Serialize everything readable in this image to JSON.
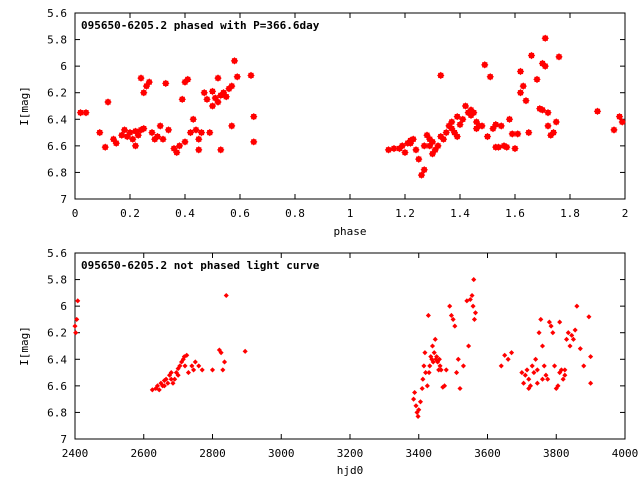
{
  "colors": {
    "points": "#ff0000",
    "frame": "#000000",
    "background": "#ffffff"
  },
  "chart_data": [
    {
      "type": "scatter",
      "title": "095650-6205.2 phased with P=366.6day",
      "xlabel": "phase",
      "ylabel": "I[mag]",
      "xlim": [
        0,
        2
      ],
      "ylim": [
        7,
        5.6
      ],
      "y_inverted": true,
      "grid": false,
      "legend": "none",
      "x_ticks": [
        "0",
        "0.2",
        "0.4",
        "0.6",
        "0.8",
        "1",
        "1.2",
        "1.4",
        "1.6",
        "1.8",
        "2"
      ],
      "y_ticks": [
        "5.6",
        "5.8",
        "6",
        "6.2",
        "6.4",
        "6.6",
        "6.8",
        "7"
      ],
      "x_tick_values": [
        0,
        0.2,
        0.4,
        0.6,
        0.8,
        1,
        1.2,
        1.4,
        1.6,
        1.8,
        2
      ],
      "y_tick_values": [
        5.6,
        5.8,
        6,
        6.2,
        6.4,
        6.6,
        6.8,
        7
      ],
      "points": [
        [
          0.02,
          6.35
        ],
        [
          0.04,
          6.35
        ],
        [
          0.09,
          6.5
        ],
        [
          0.11,
          6.61
        ],
        [
          0.12,
          6.27
        ],
        [
          0.14,
          6.55
        ],
        [
          0.15,
          6.58
        ],
        [
          0.17,
          6.52
        ],
        [
          0.18,
          6.48
        ],
        [
          0.19,
          6.53
        ],
        [
          0.2,
          6.5
        ],
        [
          0.21,
          6.55
        ],
        [
          0.22,
          6.49
        ],
        [
          0.23,
          6.52
        ],
        [
          0.24,
          6.48
        ],
        [
          0.25,
          6.47
        ],
        [
          0.24,
          6.09
        ],
        [
          0.25,
          6.2
        ],
        [
          0.26,
          6.15
        ],
        [
          0.27,
          6.12
        ],
        [
          0.28,
          6.5
        ],
        [
          0.29,
          6.55
        ],
        [
          0.3,
          6.53
        ],
        [
          0.31,
          6.45
        ],
        [
          0.32,
          6.55
        ],
        [
          0.33,
          6.13
        ],
        [
          0.34,
          6.48
        ],
        [
          0.22,
          6.6
        ],
        [
          0.36,
          6.62
        ],
        [
          0.37,
          6.65
        ],
        [
          0.38,
          6.6
        ],
        [
          0.39,
          6.25
        ],
        [
          0.4,
          6.12
        ],
        [
          0.41,
          6.1
        ],
        [
          0.4,
          6.57
        ],
        [
          0.42,
          6.5
        ],
        [
          0.43,
          6.4
        ],
        [
          0.44,
          6.48
        ],
        [
          0.45,
          6.55
        ],
        [
          0.46,
          6.5
        ],
        [
          0.47,
          6.2
        ],
        [
          0.48,
          6.25
        ],
        [
          0.49,
          6.5
        ],
        [
          0.5,
          6.19
        ],
        [
          0.51,
          6.24
        ],
        [
          0.52,
          6.27
        ],
        [
          0.52,
          6.09
        ],
        [
          0.53,
          6.22
        ],
        [
          0.54,
          6.2
        ],
        [
          0.55,
          6.23
        ],
        [
          0.56,
          6.17
        ],
        [
          0.57,
          6.15
        ],
        [
          0.58,
          5.96
        ],
        [
          0.59,
          6.08
        ],
        [
          0.53,
          6.63
        ],
        [
          0.57,
          6.45
        ],
        [
          0.64,
          6.07
        ],
        [
          0.65,
          6.38
        ],
        [
          0.65,
          6.57
        ],
        [
          0.45,
          6.63
        ],
        [
          0.5,
          6.3
        ],
        [
          1.14,
          6.63
        ],
        [
          1.16,
          6.62
        ],
        [
          1.18,
          6.62
        ],
        [
          1.19,
          6.6
        ],
        [
          1.2,
          6.65
        ],
        [
          1.21,
          6.58
        ],
        [
          1.22,
          6.56
        ],
        [
          1.23,
          6.55
        ],
        [
          1.24,
          6.63
        ],
        [
          1.25,
          6.7
        ],
        [
          1.26,
          6.82
        ],
        [
          1.27,
          6.78
        ],
        [
          1.27,
          6.6
        ],
        [
          1.28,
          6.52
        ],
        [
          1.29,
          6.55
        ],
        [
          1.3,
          6.66
        ],
        [
          1.31,
          6.63
        ],
        [
          1.32,
          6.6
        ],
        [
          1.33,
          6.53
        ],
        [
          1.34,
          6.55
        ],
        [
          1.33,
          6.07
        ],
        [
          1.35,
          6.5
        ],
        [
          1.36,
          6.45
        ],
        [
          1.37,
          6.42
        ],
        [
          1.38,
          6.5
        ],
        [
          1.39,
          6.38
        ],
        [
          1.4,
          6.44
        ],
        [
          1.41,
          6.4
        ],
        [
          1.42,
          6.3
        ],
        [
          1.43,
          6.35
        ],
        [
          1.44,
          6.37
        ],
        [
          1.45,
          6.35
        ],
        [
          1.46,
          6.42
        ],
        [
          1.47,
          6.45
        ],
        [
          1.48,
          6.45
        ],
        [
          1.49,
          5.99
        ],
        [
          1.5,
          6.53
        ],
        [
          1.51,
          6.08
        ],
        [
          1.52,
          6.47
        ],
        [
          1.53,
          6.44
        ],
        [
          1.53,
          6.61
        ],
        [
          1.54,
          6.61
        ],
        [
          1.55,
          6.45
        ],
        [
          1.56,
          6.6
        ],
        [
          1.57,
          6.61
        ],
        [
          1.58,
          6.4
        ],
        [
          1.59,
          6.51
        ],
        [
          1.6,
          6.62
        ],
        [
          1.61,
          6.51
        ],
        [
          1.62,
          6.2
        ],
        [
          1.62,
          6.04
        ],
        [
          1.63,
          6.15
        ],
        [
          1.64,
          6.26
        ],
        [
          1.65,
          6.5
        ],
        [
          1.66,
          5.92
        ],
        [
          1.68,
          6.1
        ],
        [
          1.69,
          6.32
        ],
        [
          1.7,
          5.98
        ],
        [
          1.7,
          6.33
        ],
        [
          1.71,
          5.79
        ],
        [
          1.71,
          6.0
        ],
        [
          1.72,
          6.35
        ],
        [
          1.72,
          6.45
        ],
        [
          1.73,
          6.52
        ],
        [
          1.74,
          6.5
        ],
        [
          1.75,
          6.42
        ],
        [
          1.76,
          5.93
        ],
        [
          1.9,
          6.34
        ],
        [
          1.96,
          6.48
        ],
        [
          1.98,
          6.38
        ],
        [
          1.99,
          6.42
        ],
        [
          1.22,
          6.58
        ],
        [
          1.29,
          6.6
        ],
        [
          1.37,
          6.47
        ],
        [
          1.44,
          6.33
        ],
        [
          1.46,
          6.47
        ],
        [
          1.3,
          6.57
        ],
        [
          1.39,
          6.53
        ]
      ]
    },
    {
      "type": "scatter",
      "title": "095650-6205.2 not phased light curve",
      "xlabel": "hjd0",
      "ylabel": "I[mag]",
      "xlim": [
        2400,
        4000
      ],
      "ylim": [
        7,
        5.6
      ],
      "y_inverted": true,
      "grid": false,
      "legend": "none",
      "x_ticks": [
        "2400",
        "2600",
        "2800",
        "3000",
        "3200",
        "3400",
        "3600",
        "3800",
        "4000"
      ],
      "y_ticks": [
        "5.6",
        "5.8",
        "6",
        "6.2",
        "6.4",
        "6.6",
        "6.8",
        "7"
      ],
      "x_tick_values": [
        2400,
        2600,
        2800,
        3000,
        3200,
        3400,
        3600,
        3800,
        4000
      ],
      "y_tick_values": [
        5.6,
        5.8,
        6,
        6.2,
        6.4,
        6.6,
        6.8,
        7
      ],
      "points": [
        [
          2400,
          6.15
        ],
        [
          2402,
          6.2
        ],
        [
          2405,
          6.1
        ],
        [
          2408,
          5.96
        ],
        [
          2625,
          6.63
        ],
        [
          2635,
          6.62
        ],
        [
          2640,
          6.6
        ],
        [
          2645,
          6.63
        ],
        [
          2650,
          6.58
        ],
        [
          2655,
          6.6
        ],
        [
          2660,
          6.56
        ],
        [
          2665,
          6.55
        ],
        [
          2670,
          6.58
        ],
        [
          2675,
          6.52
        ],
        [
          2680,
          6.55
        ],
        [
          2685,
          6.58
        ],
        [
          2690,
          6.55
        ],
        [
          2695,
          6.5
        ],
        [
          2700,
          6.52
        ],
        [
          2705,
          6.45
        ],
        [
          2710,
          6.42
        ],
        [
          2715,
          6.4
        ],
        [
          2718,
          6.38
        ],
        [
          2720,
          6.45
        ],
        [
          2725,
          6.37
        ],
        [
          2730,
          6.5
        ],
        [
          2740,
          6.45
        ],
        [
          2745,
          6.48
        ],
        [
          2750,
          6.42
        ],
        [
          2760,
          6.45
        ],
        [
          2770,
          6.48
        ],
        [
          2800,
          6.48
        ],
        [
          2820,
          6.33
        ],
        [
          2825,
          6.35
        ],
        [
          2830,
          6.48
        ],
        [
          2835,
          6.42
        ],
        [
          2840,
          5.92
        ],
        [
          2895,
          6.34
        ],
        [
          2660,
          6.6
        ],
        [
          2680,
          6.5
        ],
        [
          2700,
          6.47
        ],
        [
          3385,
          6.7
        ],
        [
          3388,
          6.65
        ],
        [
          3392,
          6.75
        ],
        [
          3395,
          6.8
        ],
        [
          3398,
          6.83
        ],
        [
          3400,
          6.78
        ],
        [
          3405,
          6.72
        ],
        [
          3410,
          6.62
        ],
        [
          3412,
          6.55
        ],
        [
          3415,
          6.45
        ],
        [
          3418,
          6.35
        ],
        [
          3420,
          6.5
        ],
        [
          3425,
          6.6
        ],
        [
          3428,
          6.07
        ],
        [
          3430,
          6.5
        ],
        [
          3432,
          6.45
        ],
        [
          3435,
          6.38
        ],
        [
          3438,
          6.4
        ],
        [
          3440,
          6.3
        ],
        [
          3442,
          6.42
        ],
        [
          3445,
          6.35
        ],
        [
          3448,
          6.25
        ],
        [
          3450,
          6.4
        ],
        [
          3452,
          6.38
        ],
        [
          3455,
          6.42
        ],
        [
          3458,
          6.48
        ],
        [
          3460,
          6.4
        ],
        [
          3462,
          6.45
        ],
        [
          3465,
          6.48
        ],
        [
          3470,
          6.61
        ],
        [
          3475,
          6.6
        ],
        [
          3480,
          6.48
        ],
        [
          3490,
          6.0
        ],
        [
          3495,
          6.07
        ],
        [
          3500,
          6.1
        ],
        [
          3505,
          6.15
        ],
        [
          3510,
          6.5
        ],
        [
          3515,
          6.4
        ],
        [
          3520,
          6.62
        ],
        [
          3530,
          6.45
        ],
        [
          3540,
          5.96
        ],
        [
          3545,
          6.3
        ],
        [
          3550,
          5.95
        ],
        [
          3555,
          5.92
        ],
        [
          3558,
          6.0
        ],
        [
          3560,
          5.8
        ],
        [
          3562,
          6.1
        ],
        [
          3565,
          6.05
        ],
        [
          3640,
          6.45
        ],
        [
          3650,
          6.37
        ],
        [
          3660,
          6.4
        ],
        [
          3670,
          6.35
        ],
        [
          3700,
          6.5
        ],
        [
          3705,
          6.58
        ],
        [
          3710,
          6.52
        ],
        [
          3715,
          6.48
        ],
        [
          3720,
          6.55
        ],
        [
          3725,
          6.6
        ],
        [
          3730,
          6.45
        ],
        [
          3735,
          6.5
        ],
        [
          3740,
          6.4
        ],
        [
          3745,
          6.48
        ],
        [
          3750,
          6.2
        ],
        [
          3755,
          6.1
        ],
        [
          3760,
          6.3
        ],
        [
          3765,
          6.45
        ],
        [
          3770,
          6.52
        ],
        [
          3775,
          6.55
        ],
        [
          3780,
          6.12
        ],
        [
          3785,
          6.15
        ],
        [
          3790,
          6.2
        ],
        [
          3795,
          6.45
        ],
        [
          3800,
          6.62
        ],
        [
          3805,
          6.6
        ],
        [
          3810,
          6.5
        ],
        [
          3815,
          6.48
        ],
        [
          3820,
          6.55
        ],
        [
          3825,
          6.52
        ],
        [
          3830,
          6.25
        ],
        [
          3835,
          6.2
        ],
        [
          3840,
          6.3
        ],
        [
          3845,
          6.22
        ],
        [
          3850,
          6.25
        ],
        [
          3855,
          6.18
        ],
        [
          3860,
          6.0
        ],
        [
          3870,
          6.32
        ],
        [
          3880,
          6.45
        ],
        [
          3895,
          6.08
        ],
        [
          3900,
          6.58
        ],
        [
          3900,
          6.38
        ],
        [
          3810,
          6.12
        ],
        [
          3825,
          6.48
        ],
        [
          3760,
          6.55
        ],
        [
          3745,
          6.58
        ],
        [
          3720,
          6.62
        ]
      ]
    }
  ]
}
